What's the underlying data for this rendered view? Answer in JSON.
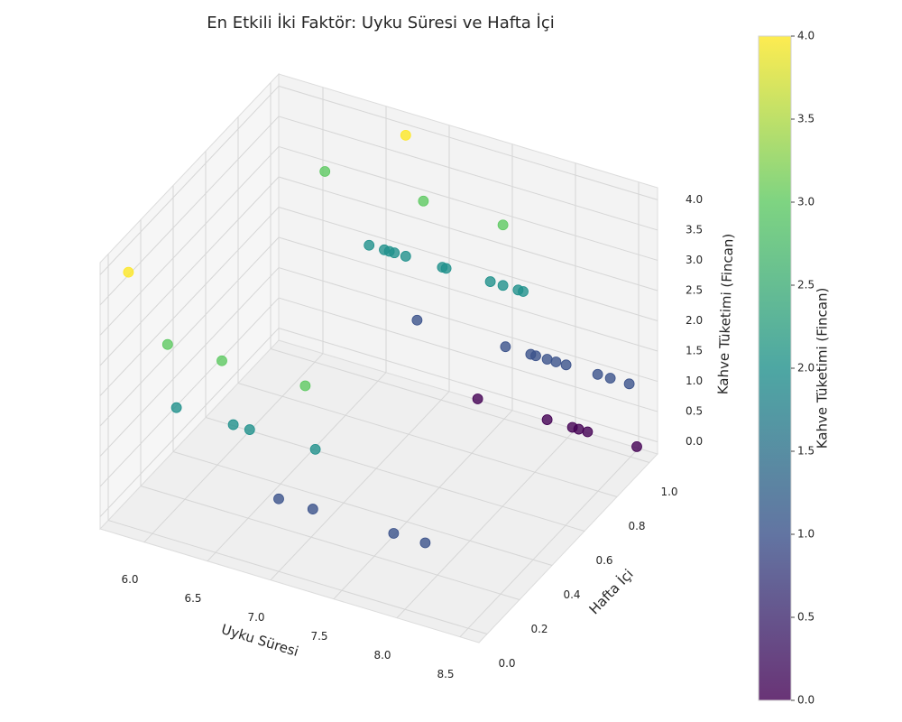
{
  "chart_data": {
    "type": "scatter",
    "title": "En Etkili İki Faktör: Uyku Süresi ve Hafta İçi",
    "xlabel": "Uyku Süresi",
    "ylabel": "Hafta İçi",
    "zlabel": "Kahve Tüketimi (Fincan)",
    "x": [
      7.29,
      7.84,
      8.04,
      8.09,
      8.16,
      8.55,
      6.81,
      7.51,
      7.71,
      7.75,
      7.84,
      7.91,
      7.99,
      8.24,
      8.34,
      8.49,
      6.43,
      6.55,
      6.59,
      6.63,
      6.72,
      7.01,
      7.04,
      7.39,
      7.49,
      7.61,
      7.65,
      6.08,
      6.86,
      7.49,
      6.72,
      5.81,
      6.12,
      6.55,
      7.21,
      6.19,
      6.64,
      6.77,
      7.29,
      7.0,
      7.27,
      7.91,
      8.16
    ],
    "y": [
      1,
      1,
      1,
      1,
      1,
      1,
      1,
      1,
      1,
      1,
      1,
      1,
      1,
      1,
      1,
      1,
      1,
      1,
      1,
      1,
      1,
      1,
      1,
      1,
      1,
      1,
      1,
      1,
      1,
      1,
      1,
      0,
      0,
      0,
      0,
      0,
      0,
      0,
      0,
      0,
      0,
      0,
      0
    ],
    "z": [
      0,
      0,
      0,
      0,
      0,
      0,
      1,
      1,
      1,
      1,
      1,
      1,
      1,
      1,
      1,
      1,
      2,
      2,
      2,
      2,
      2,
      2,
      2,
      2,
      2,
      2,
      2,
      3,
      3,
      3,
      4,
      4,
      3,
      3,
      3,
      2,
      2,
      2,
      2,
      1,
      1,
      1,
      1
    ],
    "xlim": [
      5.65,
      8.65
    ],
    "xticks": [
      {
        "value": 6,
        "label": "6.0"
      },
      6.5,
      {
        "value": 7,
        "label": "7.0"
      },
      7.5,
      {
        "value": 8,
        "label": "8.0"
      },
      8.5
    ],
    "ylim": [
      -0.05,
      1.05
    ],
    "yticks": [
      {
        "value": 0,
        "label": "0.0"
      },
      0.2,
      0.4,
      0.6,
      0.8,
      {
        "value": 1,
        "label": "1.0"
      }
    ],
    "zlim": [
      -0.2,
      4.2
    ],
    "zticks": [
      {
        "value": 0,
        "label": "0.0"
      },
      0.5,
      {
        "value": 1,
        "label": "1.0"
      },
      1.5,
      {
        "value": 2,
        "label": "2.0"
      },
      2.5,
      {
        "value": 3,
        "label": "3.0"
      },
      3.5,
      {
        "value": 4,
        "label": "4.0"
      }
    ],
    "colormap": [
      "#440154",
      "#3b528b",
      "#21918c",
      "#5ec962",
      "#fde725"
    ],
    "alpha": 0.8,
    "grid": true,
    "colorbar": {
      "label": "Kahve Tüketimi (Fincan)",
      "lim": [
        0,
        4
      ],
      "ticks": [
        {
          "value": 0,
          "label": "0.0"
        },
        0.5,
        {
          "value": 1,
          "label": "1.0"
        },
        1.5,
        {
          "value": 2,
          "label": "2.0"
        },
        2.5,
        {
          "value": 3,
          "label": "3.0"
        },
        3.5,
        {
          "value": 4,
          "label": "4.0"
        }
      ]
    }
  }
}
